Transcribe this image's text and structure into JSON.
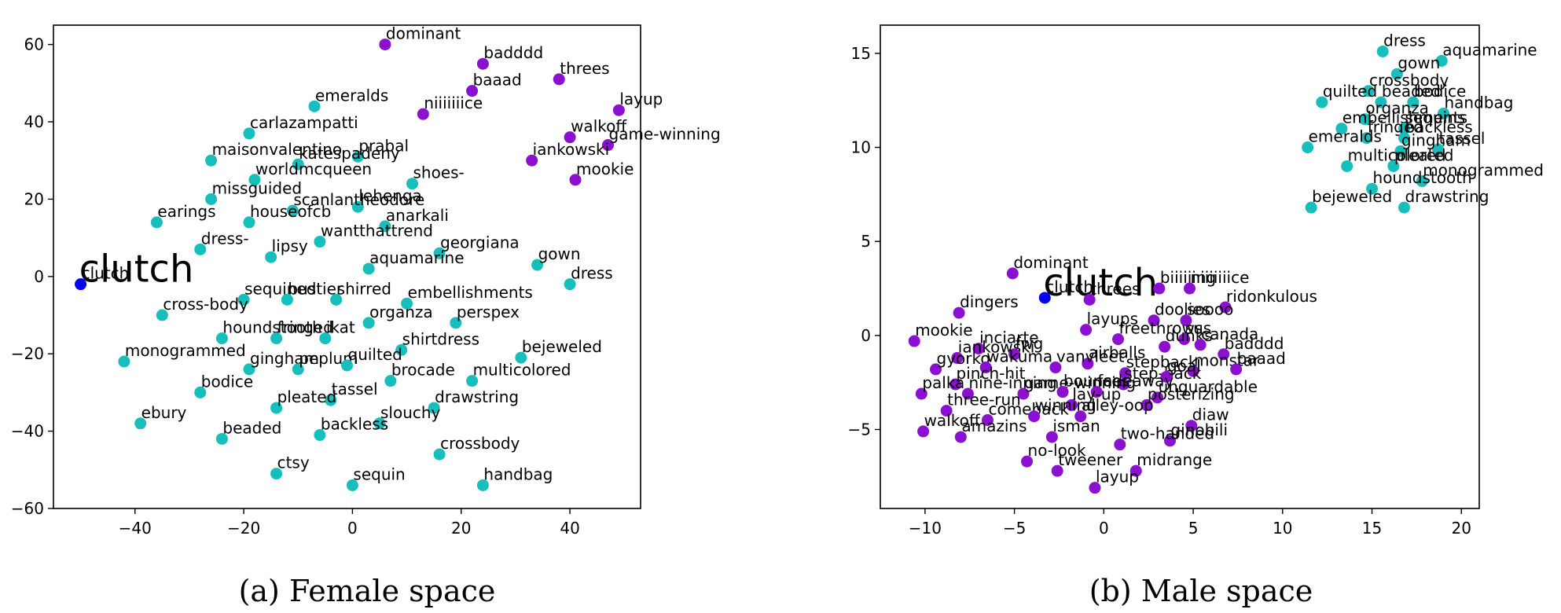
{
  "chart_data": [
    {
      "type": "scatter",
      "caption": "(a) Female space",
      "xlim": [
        -55,
        53
      ],
      "ylim": [
        -60,
        65
      ],
      "xticks": [
        -40,
        -20,
        0,
        20,
        40
      ],
      "yticks": [
        -60,
        -40,
        -20,
        0,
        20,
        40,
        60
      ],
      "tick_labels_x": [
        "−40",
        "−20",
        "0",
        "20",
        "40"
      ],
      "tick_labels_y": [
        "−60",
        "−40",
        "−20",
        "0",
        "20",
        "40",
        "60"
      ],
      "grid": false,
      "colors": {
        "query": "#0000ee",
        "female": "#17bebb",
        "male": "#8b10cf"
      },
      "points": [
        {
          "label": "clutch",
          "x": -50,
          "y": -2,
          "group": "query"
        },
        {
          "label": "dominant",
          "x": 6,
          "y": 60,
          "group": "male"
        },
        {
          "label": "badddd",
          "x": 24,
          "y": 55,
          "group": "male"
        },
        {
          "label": "baaad",
          "x": 22,
          "y": 48,
          "group": "male"
        },
        {
          "label": "threes",
          "x": 38,
          "y": 51,
          "group": "male"
        },
        {
          "label": "layup",
          "x": 49,
          "y": 43,
          "group": "male"
        },
        {
          "label": "niiiiiiice",
          "x": 13,
          "y": 42,
          "group": "male"
        },
        {
          "label": "walkoff",
          "x": 40,
          "y": 36,
          "group": "male"
        },
        {
          "label": "game-winning",
          "x": 47,
          "y": 34,
          "group": "male"
        },
        {
          "label": "iankowski",
          "x": 33,
          "y": 30,
          "group": "male"
        },
        {
          "label": "mookie",
          "x": 41,
          "y": 25,
          "group": "male"
        },
        {
          "label": "emeralds",
          "x": -7,
          "y": 44,
          "group": "female"
        },
        {
          "label": "carlazampatti",
          "x": -19,
          "y": 37,
          "group": "female"
        },
        {
          "label": "prabal",
          "x": 1,
          "y": 31,
          "group": "female"
        },
        {
          "label": "maisonvalentino",
          "x": -26,
          "y": 30,
          "group": "female"
        },
        {
          "label": "katespadeny",
          "x": -10,
          "y": 29,
          "group": "female"
        },
        {
          "label": "worldmcqueen",
          "x": -18,
          "y": 25,
          "group": "female"
        },
        {
          "label": "shoes-",
          "x": 11,
          "y": 24,
          "group": "female"
        },
        {
          "label": "missguided",
          "x": -26,
          "y": 20,
          "group": "female"
        },
        {
          "label": "lehenga",
          "x": 1,
          "y": 18,
          "group": "female"
        },
        {
          "label": "scanlantheodore",
          "x": -11,
          "y": 17,
          "group": "female"
        },
        {
          "label": "earings",
          "x": -36,
          "y": 14,
          "group": "female"
        },
        {
          "label": "houseofcb",
          "x": -19,
          "y": 14,
          "group": "female"
        },
        {
          "label": "anarkali",
          "x": 6,
          "y": 13,
          "group": "female"
        },
        {
          "label": "wantthattrend",
          "x": -6,
          "y": 9,
          "group": "female"
        },
        {
          "label": "dress-",
          "x": -28,
          "y": 7,
          "group": "female"
        },
        {
          "label": "georgiana",
          "x": 16,
          "y": 6,
          "group": "female"
        },
        {
          "label": "lipsy",
          "x": -15,
          "y": 5,
          "group": "female"
        },
        {
          "label": "gown",
          "x": 34,
          "y": 3,
          "group": "female"
        },
        {
          "label": "aquamarine",
          "x": 3,
          "y": 2,
          "group": "female"
        },
        {
          "label": "dress",
          "x": 40,
          "y": -2,
          "group": "female"
        },
        {
          "label": "sequined",
          "x": -20,
          "y": -6,
          "group": "female"
        },
        {
          "label": "bustier",
          "x": -12,
          "y": -6,
          "group": "female"
        },
        {
          "label": "shirred",
          "x": -3,
          "y": -6,
          "group": "female"
        },
        {
          "label": "embellishments",
          "x": 10,
          "y": -7,
          "group": "female"
        },
        {
          "label": "cross-body",
          "x": -35,
          "y": -10,
          "group": "female"
        },
        {
          "label": "organza",
          "x": 3,
          "y": -12,
          "group": "female"
        },
        {
          "label": "perspex",
          "x": 19,
          "y": -12,
          "group": "female"
        },
        {
          "label": "houndstooth",
          "x": -24,
          "y": -16,
          "group": "female"
        },
        {
          "label": "fringed",
          "x": -14,
          "y": -16,
          "group": "female"
        },
        {
          "label": "ikat",
          "x": -5,
          "y": -16,
          "group": "female"
        },
        {
          "label": "shirtdress",
          "x": 9,
          "y": -19,
          "group": "female"
        },
        {
          "label": "monogrammed",
          "x": -42,
          "y": -22,
          "group": "female"
        },
        {
          "label": "bejeweled",
          "x": 31,
          "y": -21,
          "group": "female"
        },
        {
          "label": "gingham",
          "x": -19,
          "y": -24,
          "group": "female"
        },
        {
          "label": "peplum",
          "x": -10,
          "y": -24,
          "group": "female"
        },
        {
          "label": "quilted",
          "x": -1,
          "y": -23,
          "group": "female"
        },
        {
          "label": "brocade",
          "x": 7,
          "y": -27,
          "group": "female"
        },
        {
          "label": "multicolored",
          "x": 22,
          "y": -27,
          "group": "female"
        },
        {
          "label": "bodice",
          "x": -28,
          "y": -30,
          "group": "female"
        },
        {
          "label": "tassel",
          "x": -4,
          "y": -32,
          "group": "female"
        },
        {
          "label": "pleated",
          "x": -14,
          "y": -34,
          "group": "female"
        },
        {
          "label": "drawstring",
          "x": 15,
          "y": -34,
          "group": "female"
        },
        {
          "label": "ebury",
          "x": -39,
          "y": -38,
          "group": "female"
        },
        {
          "label": "slouchy",
          "x": 5,
          "y": -38,
          "group": "female"
        },
        {
          "label": "beaded",
          "x": -24,
          "y": -42,
          "group": "female"
        },
        {
          "label": "backless",
          "x": -6,
          "y": -41,
          "group": "female"
        },
        {
          "label": "crossbody",
          "x": 16,
          "y": -46,
          "group": "female"
        },
        {
          "label": "ctsy",
          "x": -14,
          "y": -51,
          "group": "female"
        },
        {
          "label": "sequin",
          "x": 0,
          "y": -54,
          "group": "female"
        },
        {
          "label": "handbag",
          "x": 24,
          "y": -54,
          "group": "female"
        }
      ]
    },
    {
      "type": "scatter",
      "caption": "(b) Male space",
      "xlim": [
        -12.5,
        21
      ],
      "ylim": [
        -9.2,
        16.5
      ],
      "xticks": [
        -10,
        -5,
        0,
        5,
        10,
        15,
        20
      ],
      "yticks": [
        -5,
        0,
        5,
        10,
        15
      ],
      "tick_labels_x": [
        "−10",
        "−5",
        "0",
        "5",
        "10",
        "15",
        "20"
      ],
      "tick_labels_y": [
        "−5",
        "0",
        "5",
        "10",
        "15"
      ],
      "grid": false,
      "colors": {
        "query": "#0000ee",
        "female": "#17bebb",
        "male": "#8b10cf"
      },
      "points": [
        {
          "label": "clutch",
          "x": -3.3,
          "y": 2.0,
          "group": "query"
        },
        {
          "label": "dress",
          "x": 15.6,
          "y": 15.1,
          "group": "female"
        },
        {
          "label": "aquamarine",
          "x": 18.9,
          "y": 14.6,
          "group": "female"
        },
        {
          "label": "gown",
          "x": 16.4,
          "y": 13.9,
          "group": "female"
        },
        {
          "label": "crossbody",
          "x": 14.8,
          "y": 13.0,
          "group": "female"
        },
        {
          "label": "quilted",
          "x": 12.2,
          "y": 12.4,
          "group": "female"
        },
        {
          "label": "beaded",
          "x": 15.5,
          "y": 12.4,
          "group": "female"
        },
        {
          "label": "bodice",
          "x": 17.3,
          "y": 12.4,
          "group": "female"
        },
        {
          "label": "organza",
          "x": 14.6,
          "y": 11.5,
          "group": "female"
        },
        {
          "label": "handbag",
          "x": 19.0,
          "y": 11.8,
          "group": "female"
        },
        {
          "label": "embellishments",
          "x": 13.3,
          "y": 11.0,
          "group": "female"
        },
        {
          "label": "sequins",
          "x": 16.8,
          "y": 11.0,
          "group": "female"
        },
        {
          "label": "fringed",
          "x": 14.7,
          "y": 10.5,
          "group": "female"
        },
        {
          "label": "backless",
          "x": 16.8,
          "y": 10.5,
          "group": "female"
        },
        {
          "label": "emeralds",
          "x": 11.4,
          "y": 10.0,
          "group": "female"
        },
        {
          "label": "tassel",
          "x": 18.7,
          "y": 9.9,
          "group": "female"
        },
        {
          "label": "gingham",
          "x": 16.6,
          "y": 9.8,
          "group": "female"
        },
        {
          "label": "multicolored",
          "x": 13.6,
          "y": 9.0,
          "group": "female"
        },
        {
          "label": "pleated",
          "x": 16.2,
          "y": 9.0,
          "group": "female"
        },
        {
          "label": "monogrammed",
          "x": 17.8,
          "y": 8.2,
          "group": "female"
        },
        {
          "label": "houndstooth",
          "x": 15.0,
          "y": 7.8,
          "group": "female"
        },
        {
          "label": "bejeweled",
          "x": 11.6,
          "y": 6.8,
          "group": "female"
        },
        {
          "label": "drawstring",
          "x": 16.8,
          "y": 6.8,
          "group": "female"
        },
        {
          "label": "dominant",
          "x": -5.1,
          "y": 3.3,
          "group": "male"
        },
        {
          "label": "biiiiiing",
          "x": 3.1,
          "y": 2.5,
          "group": "male"
        },
        {
          "label": "niiiiiiice",
          "x": 4.8,
          "y": 2.5,
          "group": "male"
        },
        {
          "label": "threes",
          "x": -0.8,
          "y": 1.9,
          "group": "male"
        },
        {
          "label": "dingers",
          "x": -8.1,
          "y": 1.2,
          "group": "male"
        },
        {
          "label": "ridonkulous",
          "x": 6.8,
          "y": 1.5,
          "group": "male"
        },
        {
          "label": "doolies",
          "x": 2.8,
          "y": 0.8,
          "group": "male"
        },
        {
          "label": "soooo",
          "x": 4.6,
          "y": 0.8,
          "group": "male"
        },
        {
          "label": "layups",
          "x": -1.0,
          "y": 0.3,
          "group": "male"
        },
        {
          "label": "freethrows",
          "x": 0.8,
          "y": -0.2,
          "group": "male"
        },
        {
          "label": "sus",
          "x": 4.5,
          "y": -0.2,
          "group": "male"
        },
        {
          "label": "mookie",
          "x": -10.6,
          "y": -0.3,
          "group": "male"
        },
        {
          "label": "inciarte",
          "x": -7.0,
          "y": -0.7,
          "group": "male"
        },
        {
          "label": "dunks",
          "x": 3.4,
          "y": -0.6,
          "group": "male"
        },
        {
          "label": "canada",
          "x": 5.4,
          "y": -0.5,
          "group": "male"
        },
        {
          "label": "badddd",
          "x": 6.7,
          "y": -1.0,
          "group": "male"
        },
        {
          "label": "iankowski",
          "x": -8.2,
          "y": -1.2,
          "group": "male"
        },
        {
          "label": "fwg",
          "x": -5.0,
          "y": -1.0,
          "group": "male"
        },
        {
          "label": "airballs",
          "x": -0.9,
          "y": -1.5,
          "group": "male"
        },
        {
          "label": "gyorko",
          "x": -9.4,
          "y": -1.8,
          "group": "male"
        },
        {
          "label": "wakuma",
          "x": -6.6,
          "y": -1.7,
          "group": "male"
        },
        {
          "label": "vanvleet",
          "x": -2.7,
          "y": -1.7,
          "group": "male"
        },
        {
          "label": "stepback",
          "x": 1.2,
          "y": -2.0,
          "group": "male"
        },
        {
          "label": "monstar",
          "x": 5.0,
          "y": -1.9,
          "group": "male"
        },
        {
          "label": "baaad",
          "x": 7.4,
          "y": -1.8,
          "group": "male"
        },
        {
          "label": "pinch-hit",
          "x": -8.3,
          "y": -2.6,
          "group": "male"
        },
        {
          "label": "step-back",
          "x": 1.1,
          "y": -2.6,
          "group": "male"
        },
        {
          "label": "goal",
          "x": 3.5,
          "y": -2.2,
          "group": "male"
        },
        {
          "label": "palka",
          "x": -10.2,
          "y": -3.1,
          "group": "male"
        },
        {
          "label": "nine-inning",
          "x": -7.6,
          "y": -3.1,
          "group": "male"
        },
        {
          "label": "game-winning",
          "x": -4.5,
          "y": -3.1,
          "group": "male"
        },
        {
          "label": "bounces",
          "x": -2.3,
          "y": -3.0,
          "group": "male"
        },
        {
          "label": "fadeaway",
          "x": -0.4,
          "y": -3.0,
          "group": "male"
        },
        {
          "label": "unguardable",
          "x": 3.0,
          "y": -3.3,
          "group": "male"
        },
        {
          "label": "three-run",
          "x": -8.8,
          "y": -4.0,
          "group": "male"
        },
        {
          "label": "lay-up",
          "x": -1.8,
          "y": -3.7,
          "group": "male"
        },
        {
          "label": "posterizing",
          "x": 2.4,
          "y": -3.7,
          "group": "male"
        },
        {
          "label": "comeback",
          "x": -6.5,
          "y": -4.5,
          "group": "male"
        },
        {
          "label": "walkoff",
          "x": -10.1,
          "y": -5.1,
          "group": "male"
        },
        {
          "label": "winning",
          "x": -3.9,
          "y": -4.3,
          "group": "male"
        },
        {
          "label": "alley-oop",
          "x": -1.3,
          "y": -4.3,
          "group": "male"
        },
        {
          "label": "diaw",
          "x": 4.9,
          "y": -4.8,
          "group": "male"
        },
        {
          "label": "amazins",
          "x": -8.0,
          "y": -5.4,
          "group": "male"
        },
        {
          "label": "isman",
          "x": -2.9,
          "y": -5.4,
          "group": "male"
        },
        {
          "label": "ginobili",
          "x": 3.7,
          "y": -5.6,
          "group": "male"
        },
        {
          "label": "two-handed",
          "x": 0.9,
          "y": -5.8,
          "group": "male"
        },
        {
          "label": "no-look",
          "x": -4.3,
          "y": -6.7,
          "group": "male"
        },
        {
          "label": "tweener",
          "x": -2.6,
          "y": -7.2,
          "group": "male"
        },
        {
          "label": "midrange",
          "x": 1.8,
          "y": -7.2,
          "group": "male"
        },
        {
          "label": "layup",
          "x": -0.5,
          "y": -8.1,
          "group": "male"
        }
      ]
    }
  ]
}
